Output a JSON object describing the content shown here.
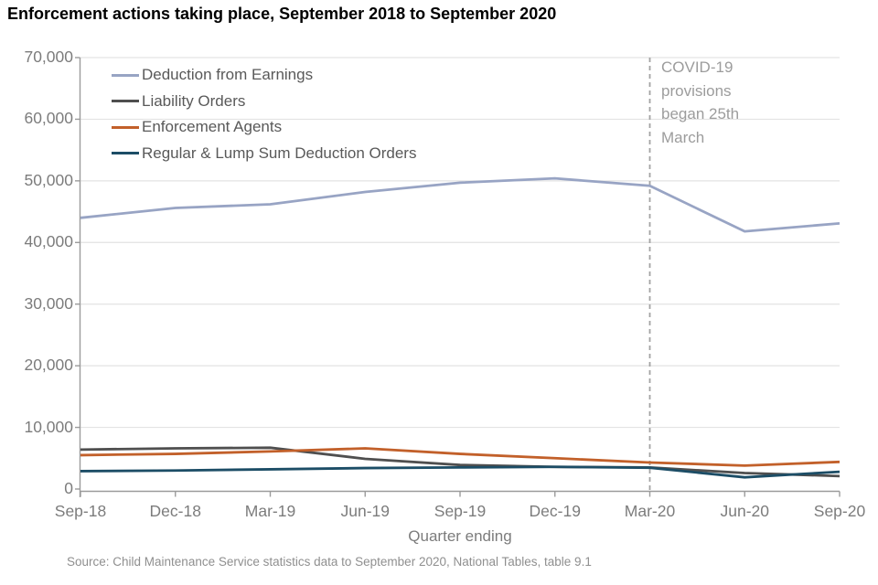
{
  "title": "Enforcement actions taking place, September 2018 to September 2020",
  "source": "Source: Child Maintenance Service statistics data to September 2020, National Tables, table 9.1",
  "annotation": {
    "text": "COVID-19\nprovisions\nbegan 25th\nMarch",
    "at_category": "Mar-20"
  },
  "colors": {
    "grid": "#e3e3e3",
    "axis": "#9b9b9b",
    "dashed_line": "#a3a3a3",
    "tick_text": "#7c7c7c",
    "legend_text": "#595959",
    "annotation_text": "#9c9c9c"
  },
  "chart_data": {
    "type": "line",
    "title": "Enforcement actions taking place, September 2018 to September 2020",
    "xlabel": "Quarter ending",
    "ylabel": "",
    "ylim": [
      0,
      70000
    ],
    "grid": true,
    "legend_position": "top-left",
    "categories": [
      "Sep-18",
      "Dec-18",
      "Mar-19",
      "Jun-19",
      "Sep-19",
      "Dec-19",
      "Mar-20",
      "Jun-20",
      "Sep-20"
    ],
    "y_ticks": [
      {
        "value": 0,
        "label": "0"
      },
      {
        "value": 10000,
        "label": "10,000"
      },
      {
        "value": 20000,
        "label": "20,000"
      },
      {
        "value": 30000,
        "label": "30,000"
      },
      {
        "value": 40000,
        "label": "40,000"
      },
      {
        "value": 50000,
        "label": "50,000"
      },
      {
        "value": 60000,
        "label": "60,000"
      },
      {
        "value": 70000,
        "label": "70,000"
      }
    ],
    "vline": {
      "at_category": "Mar-20",
      "style": "dashed"
    },
    "series": [
      {
        "name": "Deduction from Earnings",
        "color": "#98a4c4",
        "values": [
          44000,
          45600,
          46200,
          48200,
          49700,
          50400,
          49200,
          41800,
          43100
        ]
      },
      {
        "name": "Liability Orders",
        "color": "#4f4f4f",
        "values": [
          6400,
          6600,
          6700,
          4900,
          3900,
          3600,
          3500,
          2600,
          2100
        ]
      },
      {
        "name": "Enforcement Agents",
        "color": "#c2602a",
        "values": [
          5500,
          5700,
          6100,
          6600,
          5700,
          5000,
          4300,
          3800,
          4400
        ]
      },
      {
        "name": "Regular & Lump Sum Deduction Orders",
        "color": "#1c4d66",
        "values": [
          2900,
          3000,
          3200,
          3400,
          3500,
          3600,
          3450,
          1900,
          2800
        ]
      }
    ]
  }
}
